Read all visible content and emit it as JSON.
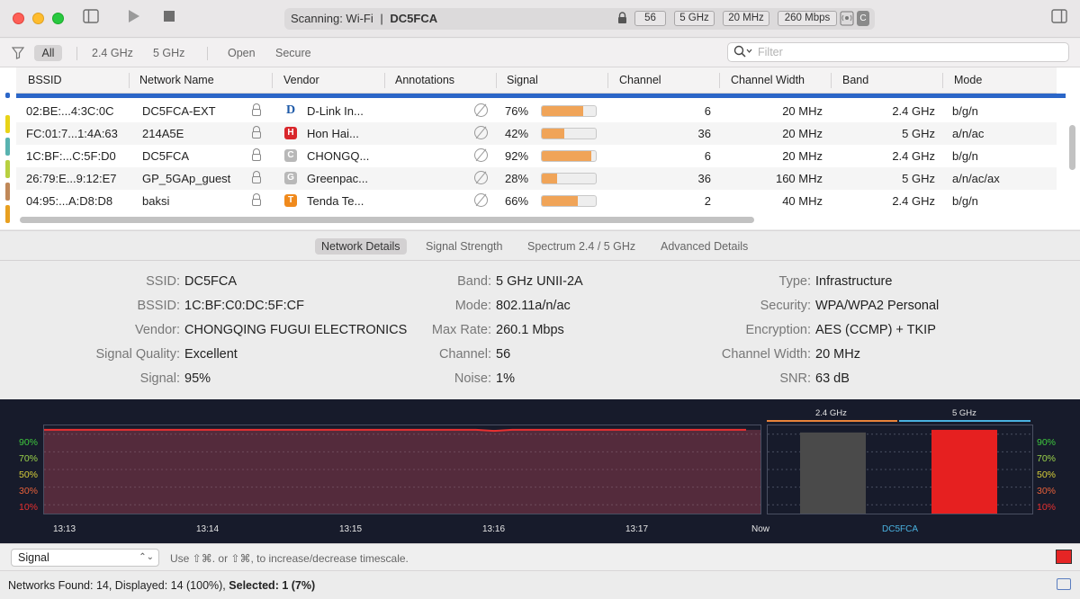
{
  "toolbar": {
    "status_prefix": "Scanning: Wi-Fi",
    "separator": "|",
    "network": "DC5FCA",
    "chips": [
      "56",
      "5 GHz",
      "20 MHz",
      "260 Mbps"
    ],
    "badge_c": "C"
  },
  "filters": {
    "all": "All",
    "band24": "2.4 GHz",
    "band5": "5 GHz",
    "open": "Open",
    "secure": "Secure",
    "search_placeholder": "Filter"
  },
  "table": {
    "columns": [
      "BSSID",
      "Network Name",
      "Vendor",
      "Annotations",
      "Signal",
      "Channel",
      "Channel Width",
      "Band",
      "Mode"
    ],
    "rows": [
      {
        "bssid": "02:BE:...4:3C:0C",
        "name": "DC5FCA-EXT",
        "vendor": "D-Link In...",
        "logo_letter": "D",
        "logo_color": "#1e5aa8",
        "signal": "76%",
        "signal_value": 76,
        "channel": "6",
        "width": "20 MHz",
        "band": "2.4 GHz",
        "mode": "b/g/n"
      },
      {
        "bssid": "FC:01:7...1:4A:63",
        "name": "214A5E",
        "vendor": "Hon Hai...",
        "logo_letter": "H",
        "logo_color": "#d9262b",
        "signal": "42%",
        "signal_value": 42,
        "channel": "36",
        "width": "20 MHz",
        "band": "5 GHz",
        "mode": "a/n/ac"
      },
      {
        "bssid": "1C:BF:...C:5F:D0",
        "name": "DC5FCA",
        "vendor": "CHONGQ...",
        "logo_letter": "C",
        "logo_color": "#b8b8b8",
        "signal": "92%",
        "signal_value": 92,
        "channel": "6",
        "width": "20 MHz",
        "band": "2.4 GHz",
        "mode": "b/g/n"
      },
      {
        "bssid": "26:79:E...9:12:E7",
        "name": "GP_5GAp_guest",
        "vendor": "Greenpac...",
        "logo_letter": "G",
        "logo_color": "#b8b8b8",
        "signal": "28%",
        "signal_value": 28,
        "channel": "36",
        "width": "160 MHz",
        "band": "5 GHz",
        "mode": "a/n/ac/ax"
      },
      {
        "bssid": "04:95:...A:D8:D8",
        "name": "baksi",
        "vendor": "Tenda Te...",
        "logo_letter": "T",
        "logo_color": "#f08a1c",
        "signal": "66%",
        "signal_value": 66,
        "channel": "2",
        "width": "40 MHz",
        "band": "2.4 GHz",
        "mode": "b/g/n"
      }
    ],
    "row_marks": [
      "#2b66c8",
      "#e8d318",
      "#58b3b0",
      "#b8d040",
      "#c08858",
      "#e8a020"
    ]
  },
  "tabs": [
    "Network Details",
    "Signal Strength",
    "Spectrum 2.4 / 5 GHz",
    "Advanced Details"
  ],
  "details": {
    "col1": [
      {
        "label": "SSID:",
        "value": "DC5FCA"
      },
      {
        "label": "BSSID:",
        "value": "1C:BF:C0:DC:5F:CF"
      },
      {
        "label": "Vendor:",
        "value": "CHONGQING FUGUI ELECTRONICS"
      },
      {
        "label": "Signal Quality:",
        "value": "Excellent"
      },
      {
        "label": "Signal:",
        "value": "95%"
      }
    ],
    "col2": [
      {
        "label": "Band:",
        "value": "5 GHz UNII-2A"
      },
      {
        "label": "Mode:",
        "value": "802.11a/n/ac"
      },
      {
        "label": "Max Rate:",
        "value": "260.1 Mbps"
      },
      {
        "label": "Channel:",
        "value": "56"
      },
      {
        "label": "Noise:",
        "value": "1%"
      }
    ],
    "col3": [
      {
        "label": "Type:",
        "value": "Infrastructure"
      },
      {
        "label": "Security:",
        "value": "WPA/WPA2 Personal"
      },
      {
        "label": "Encryption:",
        "value": "AES (CCMP) + TKIP"
      },
      {
        "label": "Channel Width:",
        "value": "20 MHz"
      },
      {
        "label": "SNR:",
        "value": "63 dB"
      }
    ]
  },
  "graph": {
    "y_ticks": [
      "90%",
      "70%",
      "50%",
      "30%",
      "10%"
    ],
    "y_colors": [
      "#3ec83e",
      "#9bd34a",
      "#d8cf3a",
      "#e8603a",
      "#e83030"
    ],
    "x_ticks": [
      "13:13",
      "13:14",
      "13:15",
      "13:16",
      "13:17",
      "Now"
    ],
    "signal_level_percent": 95,
    "bands": [
      "2.4 GHz",
      "5 GHz"
    ],
    "band_colors": [
      "#e8833a",
      "#4ab2e0"
    ],
    "band_bar_values": [
      92,
      95
    ],
    "selected_label": "DC5FCA"
  },
  "controls": {
    "metric": "Signal",
    "hint": "Use ⇧⌘. or ⇧⌘, to increase/decrease timescale."
  },
  "status": {
    "prefix": "Networks Found: 14, Displayed: 14 (100%),",
    "selected_label": "Selected: 1 (7%)"
  }
}
